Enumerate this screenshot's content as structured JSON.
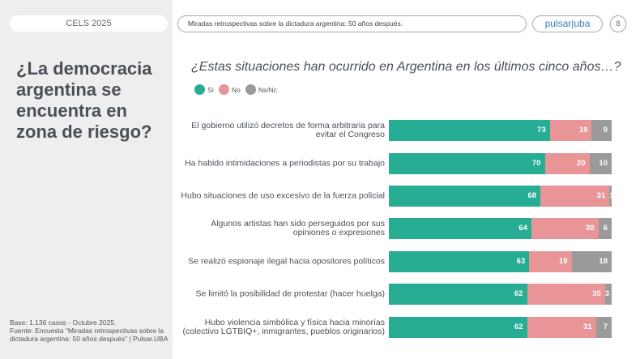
{
  "header": {
    "left_tag": "CELS 2025",
    "subtitle": "Miradas retrospectivas sobre la dictadura argentina: 50 años después.",
    "logo": "pulsar|uba",
    "page_number": "8"
  },
  "sidebar": {
    "heading": "¿La democracia argentina se encuentra en zona de riesgo?",
    "footnote": "Base: 1.136 casos - Octubre 2025.\nFuente: Encuesta “Miradas retrospectivas sobre la dictadura argentina: 50 años después” | Pulsar.UBA"
  },
  "chart_data": {
    "type": "bar",
    "stacked": true,
    "orientation": "horizontal",
    "title": "¿Estas situaciones han ocurrido en Argentina en los últimos cinco años…?",
    "legend": [
      "Sí",
      "No",
      "Ns/Nc"
    ],
    "legend_position": "top-left",
    "colors": [
      "#26ad94",
      "#e99597",
      "#9a9a9a"
    ],
    "categories": [
      "El gobierno utilizó decretos de forma arbitraria para evitar el Congreso",
      "Ha habido intimidaciones a periodistas por su trabajo",
      "Hubo situaciones de uso excesivo de la fuerza policial",
      "Algunos artistas han sido perseguidos por sus opiniones o expresiones",
      "Se realizó espionaje ilegal hacia opositores políticos",
      "Se limitó la posibilidad de protestar (hacer huelga)",
      "Hubo violencia simbólica y física hacia minorías (colectivo LGTBIQ+, inmigrantes, pueblos originarios)"
    ],
    "series": [
      {
        "name": "Sí",
        "values": [
          73,
          70,
          68,
          64,
          63,
          62,
          62
        ]
      },
      {
        "name": "No",
        "values": [
          19,
          20,
          31,
          30,
          19,
          35,
          31
        ]
      },
      {
        "name": "Ns/Nc",
        "values": [
          9,
          10,
          1,
          6,
          18,
          3,
          7
        ]
      }
    ]
  }
}
